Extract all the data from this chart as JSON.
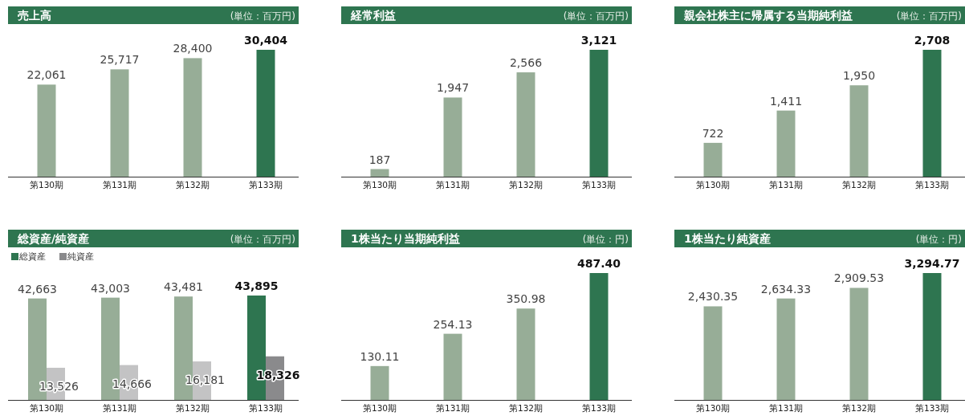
{
  "chart_data": [
    {
      "type": "bar",
      "title": "売上高",
      "subtitle": "(単位：百万円)",
      "categories": [
        "第130期",
        "第131期",
        "第132期",
        "第133期"
      ],
      "values": [
        22061,
        25717,
        28400,
        30404
      ],
      "value_labels": [
        "22,061",
        "25,717",
        "28,400",
        "30,404"
      ],
      "colors": [
        "#97ad97",
        "#97ad97",
        "#97ad97",
        "#2e7550"
      ]
    },
    {
      "type": "bar",
      "title": "経常利益",
      "subtitle": "(単位：百万円)",
      "categories": [
        "第130期",
        "第131期",
        "第132期",
        "第133期"
      ],
      "values": [
        187,
        1947,
        2566,
        3121
      ],
      "value_labels": [
        "187",
        "1,947",
        "2,566",
        "3,121"
      ],
      "colors": [
        "#97ad97",
        "#97ad97",
        "#97ad97",
        "#2e7550"
      ]
    },
    {
      "type": "bar",
      "title": "親会社株主に帰属する当期純利益",
      "subtitle": "(単位：百万円)",
      "categories": [
        "第130期",
        "第131期",
        "第132期",
        "第133期"
      ],
      "values": [
        722,
        1411,
        1950,
        2708
      ],
      "value_labels": [
        "722",
        "1,411",
        "1,950",
        "2,708"
      ],
      "colors": [
        "#97ad97",
        "#97ad97",
        "#97ad97",
        "#2e7550"
      ]
    },
    {
      "type": "bar",
      "title": "総資産/純資産",
      "subtitle": "(単位：百万円)",
      "categories": [
        "第130期",
        "第131期",
        "第132期",
        "第133期"
      ],
      "series": [
        {
          "name": "総資産",
          "color": "#2e7550",
          "colors": [
            "#97ad97",
            "#97ad97",
            "#97ad97",
            "#2e7550"
          ],
          "values": [
            42663,
            43003,
            43481,
            43895
          ],
          "value_labels": [
            "42,663",
            "43,003",
            "43,481",
            "43,895"
          ]
        },
        {
          "name": "純資産",
          "color": "#8a8a8c",
          "colors": [
            "#c3c3c4",
            "#c3c3c4",
            "#c3c3c4",
            "#8a8a8c"
          ],
          "values": [
            13526,
            14666,
            16181,
            18326
          ],
          "value_labels": [
            "13,526",
            "14,666",
            "16,181",
            "18,326"
          ]
        }
      ],
      "legend": "top left"
    },
    {
      "type": "bar",
      "title": "1株当たり当期純利益",
      "subtitle": "(単位：円)",
      "categories": [
        "第130期",
        "第131期",
        "第132期",
        "第133期"
      ],
      "values": [
        130.11,
        254.13,
        350.98,
        487.4
      ],
      "value_labels": [
        "130.11",
        "254.13",
        "350.98",
        "487.40"
      ],
      "colors": [
        "#97ad97",
        "#97ad97",
        "#97ad97",
        "#2e7550"
      ]
    },
    {
      "type": "bar",
      "title": "1株当たり純資産",
      "subtitle": "(単位：円)",
      "categories": [
        "第130期",
        "第131期",
        "第132期",
        "第133期"
      ],
      "values": [
        2430.35,
        2634.33,
        2909.53,
        3294.77
      ],
      "value_labels": [
        "2,430.35",
        "2,634.33",
        "2,909.53",
        "3,294.77"
      ],
      "colors": [
        "#97ad97",
        "#97ad97",
        "#97ad97",
        "#2e7550"
      ]
    }
  ]
}
